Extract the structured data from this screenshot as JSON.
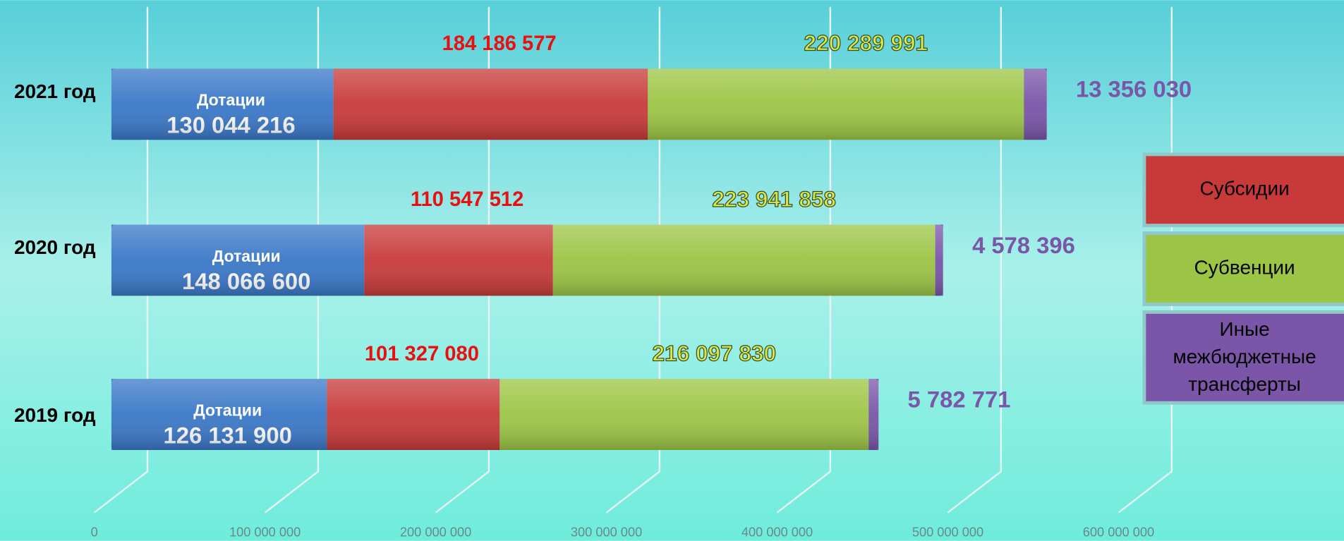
{
  "chart_data": {
    "type": "stacked-bar-horizontal",
    "categories": [
      "2021 год",
      "2020 год",
      "2019 год"
    ],
    "series": [
      {
        "name": "Дотации",
        "color": "#3a78c8",
        "values": [
          130044216,
          148066600,
          126131900
        ],
        "value_labels": [
          "130 044 216",
          "148 066 600",
          "126 131 900"
        ]
      },
      {
        "name": "Субсидии",
        "color": "#c83a3a",
        "values": [
          184186577,
          110547512,
          101327080
        ],
        "value_labels": [
          "184 186 577",
          "110 547 512",
          "101 327 080"
        ]
      },
      {
        "name": "Субвенции",
        "color": "#9cc545",
        "values": [
          220289991,
          223941858,
          216097830
        ],
        "value_labels": [
          "220 289 991",
          "223 941 858",
          "216 097 830"
        ]
      },
      {
        "name": "Иные межбюджетные трансферты",
        "color": "#7a55a8",
        "values": [
          13356030,
          4578396,
          5782771
        ],
        "value_labels": [
          "13 356 030",
          "4 578 396",
          "5 782 771"
        ]
      }
    ],
    "xlim": [
      0,
      600000000
    ],
    "xticks": [
      0,
      {
        "value": 100000000,
        "label": "100 000 000"
      },
      {
        "value": 200000000,
        "label": "200 000 000"
      },
      {
        "value": 300000000,
        "label": "300 000 000"
      },
      {
        "value": 400000000,
        "label": "400 000 000"
      },
      {
        "value": 500000000,
        "label": "500 000 000"
      },
      {
        "value": 600000000,
        "label": "600 000 000"
      }
    ],
    "grid": true
  }
}
